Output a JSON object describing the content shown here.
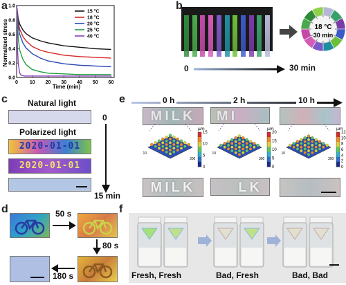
{
  "panels": {
    "a": "a",
    "b": "b",
    "c": "c",
    "d": "d",
    "e": "e",
    "f": "f"
  },
  "chart_data": {
    "type": "line",
    "title": "",
    "xlabel": "Time (min)",
    "ylabel": "Normalized stress",
    "xlim": [
      0,
      62
    ],
    "ylim": [
      0,
      1.0
    ],
    "xticks": [
      "0",
      "10",
      "20",
      "30",
      "40",
      "50",
      "60"
    ],
    "yticks": [
      "0.0",
      "0.2",
      "0.4",
      "0.6",
      "0.8",
      "1.0"
    ],
    "grid": false,
    "legend": "top-right",
    "series": [
      {
        "name": "15 °C",
        "color": "#111111",
        "x": [
          0,
          1,
          2,
          4,
          6,
          10,
          15,
          20,
          30,
          40,
          50,
          60
        ],
        "y": [
          1.0,
          0.82,
          0.74,
          0.66,
          0.61,
          0.55,
          0.51,
          0.48,
          0.44,
          0.42,
          0.4,
          0.39
        ]
      },
      {
        "name": "18 °C",
        "color": "#d62728",
        "x": [
          0,
          1,
          2,
          4,
          6,
          10,
          15,
          20,
          30,
          40,
          50,
          60
        ],
        "y": [
          1.0,
          0.77,
          0.67,
          0.57,
          0.51,
          0.43,
          0.38,
          0.35,
          0.31,
          0.29,
          0.28,
          0.27
        ]
      },
      {
        "name": "20 °C",
        "color": "#2a46b5",
        "x": [
          0,
          1,
          2,
          4,
          6,
          10,
          15,
          20,
          30,
          40,
          50,
          60
        ],
        "y": [
          1.0,
          0.72,
          0.6,
          0.48,
          0.41,
          0.33,
          0.27,
          0.23,
          0.19,
          0.17,
          0.16,
          0.15
        ]
      },
      {
        "name": "25 °C",
        "color": "#1f9e3a",
        "x": [
          0,
          1,
          2,
          4,
          6,
          10,
          15,
          20,
          30,
          40,
          50,
          60
        ],
        "y": [
          1.0,
          0.55,
          0.38,
          0.25,
          0.18,
          0.11,
          0.08,
          0.06,
          0.05,
          0.04,
          0.04,
          0.04
        ]
      },
      {
        "name": "40 °C",
        "color": "#8a3fb8",
        "x": [
          0,
          0.5,
          1,
          2,
          3,
          5,
          8,
          15,
          30,
          60
        ],
        "y": [
          1.0,
          0.45,
          0.2,
          0.06,
          0.03,
          0.02,
          0.02,
          0.02,
          0.02,
          0.02
        ]
      }
    ]
  },
  "panel_b": {
    "start": "0",
    "end": "30 min",
    "clock_temp": "18 °C",
    "clock_time": "30 min",
    "bar_colors": [
      "#2f8a3a",
      "#4aa94a",
      "#c44aa8",
      "#d45bb8",
      "#7a59c8",
      "#1f8fa0",
      "#6bbf3a",
      "#3b59c8",
      "#7a3ca8",
      "#3aa06a",
      "#b4b8d6"
    ],
    "ring_colors": [
      "#b4b8d6",
      "#3aa06a",
      "#7a3ca8",
      "#3b59c8",
      "#6bbf3a",
      "#1f8fa0",
      "#7a59c8",
      "#d45bb8",
      "#c44aa8",
      "#4aa94a",
      "#2f8a3a",
      "#8fd24a"
    ]
  },
  "panel_c": {
    "natural": "Natural light",
    "polarized": "Polarized light",
    "date1": "2020-01-01",
    "date2": "2020-01-01",
    "t_start": "0",
    "t_end": "15 min"
  },
  "panel_d": {
    "t1": "50 s",
    "t2": "80 s",
    "t3": "180 s"
  },
  "panel_e": {
    "times": [
      "0 h",
      "2 h",
      "10 h"
    ],
    "word_top": [
      "MILK",
      "MI",
      ""
    ],
    "word_bottom": [
      "MILK",
      "LK",
      ""
    ],
    "unit": "μm",
    "scales": [
      {
        "ticks": [
          "15",
          "10",
          "5",
          "0"
        ]
      },
      {
        "ticks": [
          "20",
          "15",
          "10",
          "5",
          "0"
        ]
      },
      {
        "ticks": [
          "12",
          "10",
          "8",
          "6",
          "4",
          "2",
          "0"
        ]
      }
    ],
    "axis_ticks": [
      "20",
      "10",
      "0",
      "100",
      "200",
      "300"
    ]
  },
  "panel_f": {
    "labels": [
      "Fresh, Fresh",
      "Bad, Fresh",
      "Bad, Bad"
    ]
  }
}
